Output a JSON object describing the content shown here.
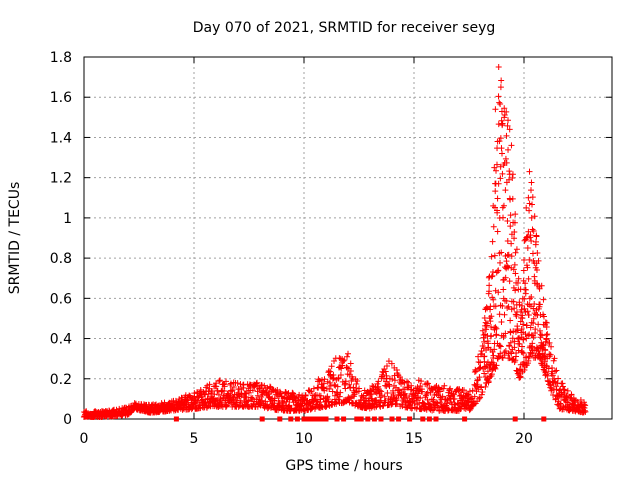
{
  "chart_data": {
    "type": "scatter",
    "title": "Day 070 of 2021, SRMTID for receiver seyg",
    "xlabel": "GPS time / hours",
    "ylabel": "SRMTID / TECUs",
    "xlim": [
      0,
      24
    ],
    "ylim": [
      0,
      1.8
    ],
    "x_ticks": [
      0,
      5,
      10,
      15,
      20
    ],
    "y_ticks": [
      0,
      0.2,
      0.4,
      0.6,
      0.8,
      1,
      1.2,
      1.4,
      1.6,
      1.8
    ],
    "x_tick_labels": [
      "0",
      "5",
      "10",
      "15",
      "20"
    ],
    "y_tick_labels": [
      "0",
      "0.2",
      "0.4",
      "0.6",
      "0.8",
      "1",
      "1.2",
      "1.4",
      "1.6",
      "1.8"
    ],
    "grid": true,
    "marker": "plus",
    "series_color": "#ff0000",
    "envelope": [
      {
        "x": 0.0,
        "lo": 0.01,
        "hi": 0.04
      },
      {
        "x": 1.0,
        "lo": 0.01,
        "hi": 0.04
      },
      {
        "x": 2.0,
        "lo": 0.02,
        "hi": 0.06
      },
      {
        "x": 2.3,
        "lo": 0.05,
        "hi": 0.08
      },
      {
        "x": 3.0,
        "lo": 0.03,
        "hi": 0.07
      },
      {
        "x": 4.0,
        "lo": 0.04,
        "hi": 0.09
      },
      {
        "x": 5.0,
        "lo": 0.05,
        "hi": 0.14
      },
      {
        "x": 6.0,
        "lo": 0.06,
        "hi": 0.2
      },
      {
        "x": 7.0,
        "lo": 0.06,
        "hi": 0.18
      },
      {
        "x": 8.0,
        "lo": 0.06,
        "hi": 0.18
      },
      {
        "x": 9.0,
        "lo": 0.04,
        "hi": 0.14
      },
      {
        "x": 10.0,
        "lo": 0.04,
        "hi": 0.12
      },
      {
        "x": 11.0,
        "lo": 0.06,
        "hi": 0.25
      },
      {
        "x": 11.9,
        "lo": 0.08,
        "hi": 0.36
      },
      {
        "x": 12.5,
        "lo": 0.06,
        "hi": 0.18
      },
      {
        "x": 13.0,
        "lo": 0.05,
        "hi": 0.15
      },
      {
        "x": 13.9,
        "lo": 0.07,
        "hi": 0.3
      },
      {
        "x": 14.5,
        "lo": 0.06,
        "hi": 0.2
      },
      {
        "x": 15.0,
        "lo": 0.05,
        "hi": 0.2
      },
      {
        "x": 16.0,
        "lo": 0.04,
        "hi": 0.17
      },
      {
        "x": 17.0,
        "lo": 0.04,
        "hi": 0.16
      },
      {
        "x": 17.5,
        "lo": 0.04,
        "hi": 0.14
      },
      {
        "x": 18.0,
        "lo": 0.1,
        "hi": 0.35
      },
      {
        "x": 18.5,
        "lo": 0.2,
        "hi": 0.8
      },
      {
        "x": 18.9,
        "lo": 0.3,
        "hi": 1.75
      },
      {
        "x": 19.4,
        "lo": 0.3,
        "hi": 1.45
      },
      {
        "x": 19.8,
        "lo": 0.2,
        "hi": 0.6
      },
      {
        "x": 20.3,
        "lo": 0.3,
        "hi": 1.23
      },
      {
        "x": 20.7,
        "lo": 0.3,
        "hi": 0.75
      },
      {
        "x": 21.2,
        "lo": 0.15,
        "hi": 0.4
      },
      {
        "x": 21.6,
        "lo": 0.05,
        "hi": 0.2
      },
      {
        "x": 22.2,
        "lo": 0.04,
        "hi": 0.12
      },
      {
        "x": 22.8,
        "lo": 0.03,
        "hi": 0.08
      }
    ],
    "zero_markers_x": [
      4.2,
      8.1,
      8.9,
      9.4,
      9.7,
      10.0,
      10.2,
      10.4,
      10.6,
      10.8,
      11.0,
      11.5,
      11.8,
      12.4,
      12.6,
      12.9,
      13.2,
      13.5,
      14.0,
      14.3,
      14.8,
      15.4,
      15.7,
      16.0,
      17.3,
      19.6,
      20.9
    ],
    "highlight_points": [
      {
        "x": 18.85,
        "y": 1.75
      },
      {
        "x": 18.95,
        "y": 1.65
      },
      {
        "x": 18.7,
        "y": 1.54
      },
      {
        "x": 19.1,
        "y": 1.5
      },
      {
        "x": 19.35,
        "y": 1.44
      },
      {
        "x": 18.8,
        "y": 1.38
      },
      {
        "x": 19.0,
        "y": 1.32
      },
      {
        "x": 18.65,
        "y": 1.25
      },
      {
        "x": 20.25,
        "y": 1.23
      },
      {
        "x": 20.2,
        "y": 1.1
      },
      {
        "x": 20.1,
        "y": 1.05
      },
      {
        "x": 18.6,
        "y": 1.06
      },
      {
        "x": 20.35,
        "y": 1.0
      }
    ]
  }
}
